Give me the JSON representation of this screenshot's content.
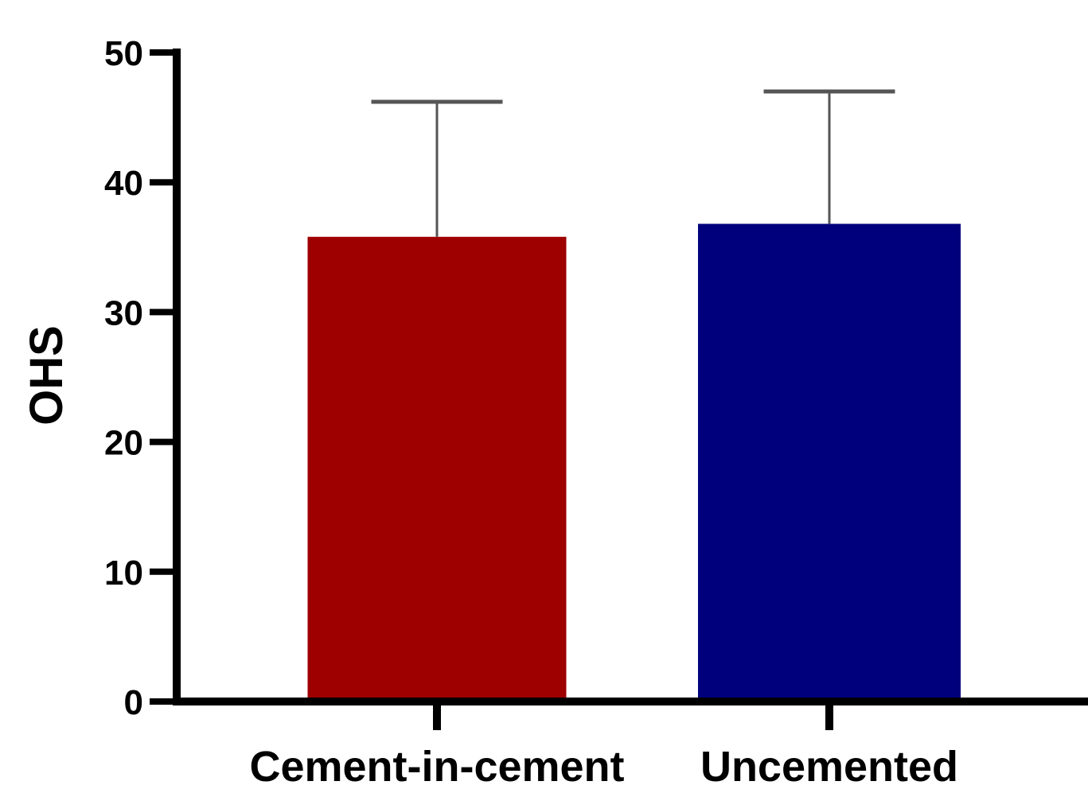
{
  "chart_data": {
    "type": "bar",
    "title": "",
    "xlabel": "",
    "ylabel": "OHS",
    "ylim": [
      0,
      50
    ],
    "yticks": [
      0,
      10,
      20,
      30,
      40,
      50
    ],
    "yticks_text": [
      "0",
      "10",
      "20",
      "30",
      "40",
      "50"
    ],
    "grid": false,
    "legend": "none",
    "categories": [
      "Cement-in-cement",
      "Uncemented"
    ],
    "values": [
      35.8,
      36.8
    ],
    "error_upper": [
      46.2,
      47.0
    ],
    "colors": [
      "#9e0000",
      "#00007d"
    ],
    "error_bar_color": "#555555"
  }
}
